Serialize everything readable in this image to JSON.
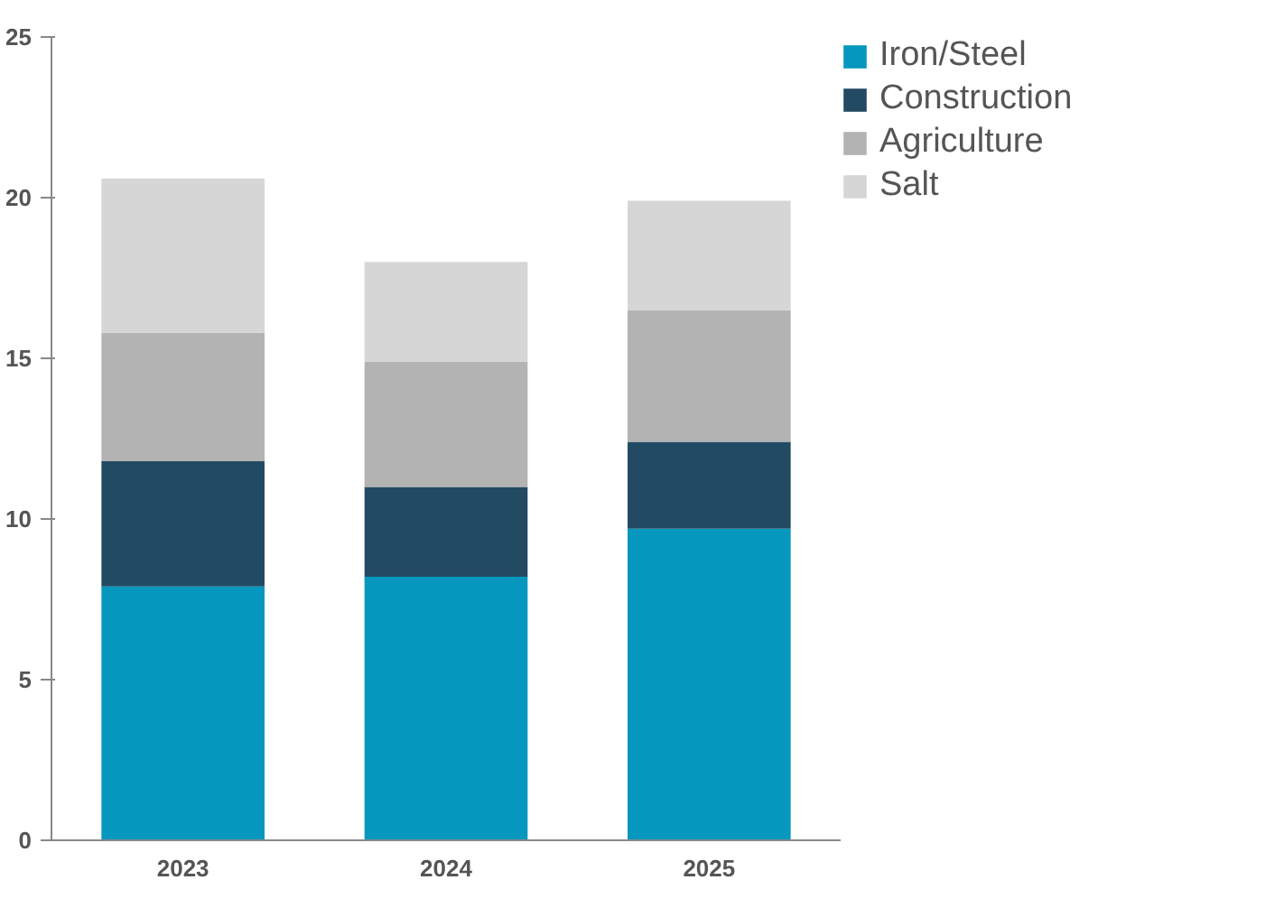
{
  "chart_data": {
    "type": "bar",
    "stacked": true,
    "categories": [
      "2023",
      "2024",
      "2025"
    ],
    "series": [
      {
        "name": "Iron/Steel",
        "color": "#0597bd",
        "values": [
          7.9,
          8.2,
          9.7
        ]
      },
      {
        "name": "Construction",
        "color": "#234a63",
        "values": [
          3.9,
          2.8,
          2.7
        ]
      },
      {
        "name": "Agriculture",
        "color": "#b3b3b3",
        "values": [
          4.0,
          3.9,
          4.1
        ]
      },
      {
        "name": "Salt",
        "color": "#d6d6d6",
        "values": [
          4.8,
          3.1,
          3.4
        ]
      }
    ],
    "ylim": [
      0,
      25
    ],
    "yticks": [
      0,
      5,
      10,
      15,
      20,
      25
    ],
    "grid": false,
    "legend": "top right"
  }
}
